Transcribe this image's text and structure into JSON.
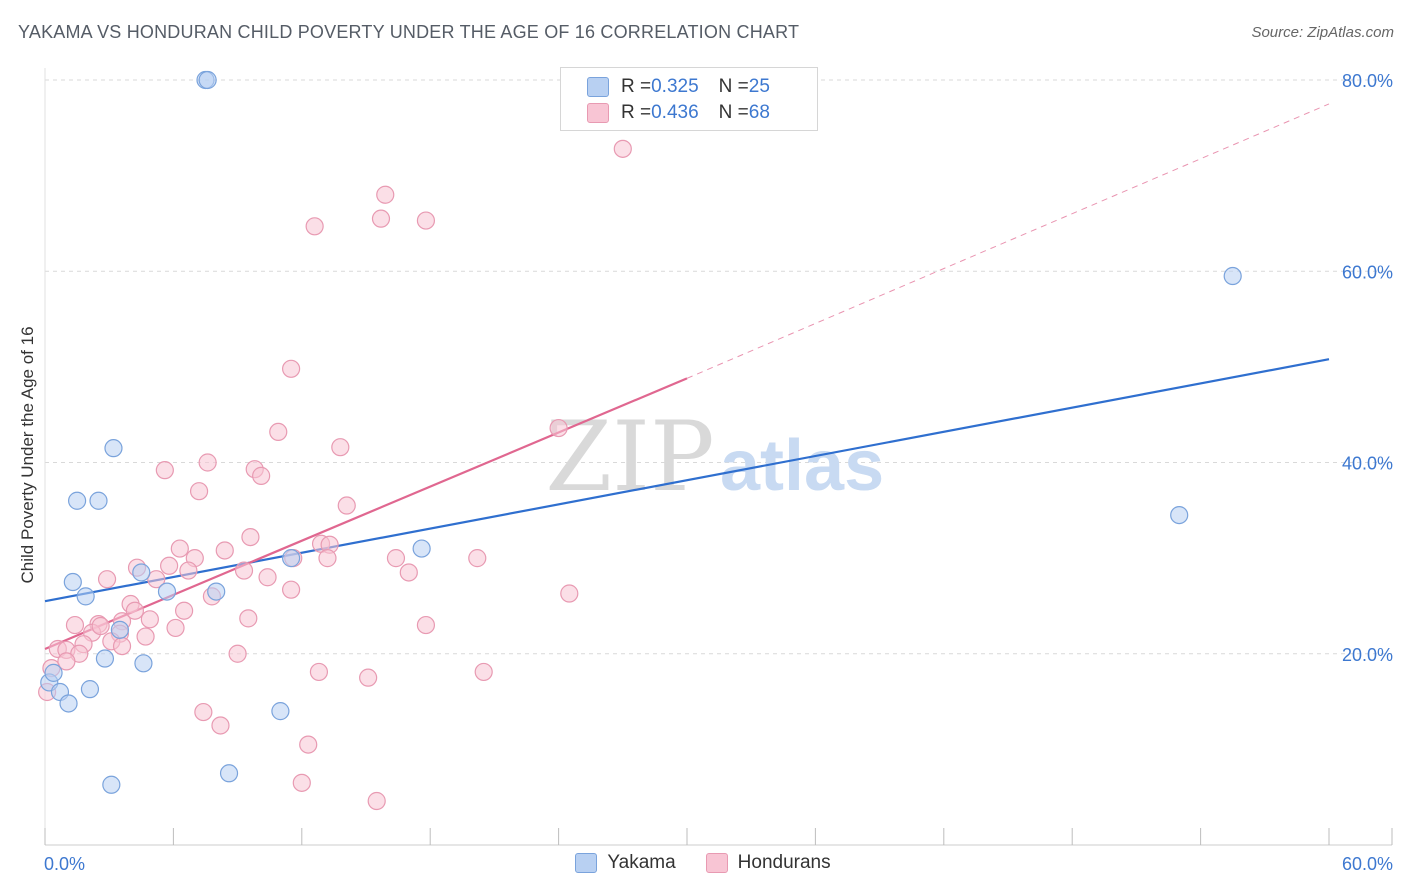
{
  "title": "YAKAMA VS HONDURAN CHILD POVERTY UNDER THE AGE OF 16 CORRELATION CHART",
  "source": "Source: ZipAtlas.com",
  "watermark": {
    "zip": "ZIP",
    "atlas": "atlas"
  },
  "legend": {
    "rows": [
      {
        "r_label": "R = ",
        "r_value": "0.325",
        "n_label": "N = ",
        "n_value": "25"
      },
      {
        "r_label": "R = ",
        "r_value": "0.436",
        "n_label": "N = ",
        "n_value": "68"
      }
    ]
  },
  "bottom_legend": [
    "Yakama",
    "Hondurans"
  ],
  "colors": {
    "yakama_fill": "#b8d0f2",
    "yakama_stroke": "#7aa3dc",
    "yakama_line": "#2f6fcf",
    "honduran_fill": "#f8c5d4",
    "honduran_stroke": "#e89ab2",
    "honduran_line": "#e06790",
    "tick_label": "#3d78d0",
    "grid": "#d9d9d9"
  },
  "chart_data": {
    "type": "scatter",
    "title": "YAKAMA VS HONDURAN CHILD POVERTY UNDER THE AGE OF 16 CORRELATION CHART",
    "xlabel": "",
    "ylabel": "Child Poverty Under the Age of 16",
    "xlim": [
      0,
      60
    ],
    "ylim": [
      0,
      80
    ],
    "x_tick_labels": [
      "0.0%",
      "60.0%"
    ],
    "y_ticks": [
      20,
      40,
      60,
      80
    ],
    "y_tick_labels": [
      "20.0%",
      "40.0%",
      "60.0%",
      "80.0%"
    ],
    "grid": true,
    "series": [
      {
        "name": "Yakama",
        "R": 0.325,
        "N": 25,
        "trend": {
          "x": [
            0,
            60
          ],
          "y": [
            25.5,
            50.8
          ],
          "dashed_extension": false
        },
        "points": [
          [
            7.5,
            80.0
          ],
          [
            7.6,
            80.0
          ],
          [
            55.5,
            59.5
          ],
          [
            53.0,
            34.5
          ],
          [
            3.2,
            41.5
          ],
          [
            1.5,
            36.0
          ],
          [
            2.5,
            36.0
          ],
          [
            1.3,
            27.5
          ],
          [
            1.9,
            26.0
          ],
          [
            4.5,
            28.5
          ],
          [
            5.7,
            26.5
          ],
          [
            8.0,
            26.5
          ],
          [
            11.5,
            30.0
          ],
          [
            17.6,
            31.0
          ],
          [
            3.5,
            22.5
          ],
          [
            2.8,
            19.5
          ],
          [
            4.6,
            19.0
          ],
          [
            0.2,
            17.0
          ],
          [
            0.4,
            18.0
          ],
          [
            0.7,
            16.0
          ],
          [
            2.1,
            16.3
          ],
          [
            1.1,
            14.8
          ],
          [
            11.0,
            14.0
          ],
          [
            8.6,
            7.5
          ],
          [
            3.1,
            6.3
          ]
        ]
      },
      {
        "name": "Hondurans",
        "R": 0.436,
        "N": 68,
        "trend": {
          "x": [
            0,
            30
          ],
          "y": [
            20.5,
            48.8
          ],
          "dashed_extension": {
            "x": [
              30,
              60
            ],
            "y": [
              48.8,
              77.5
            ]
          }
        },
        "points": [
          [
            27.0,
            72.8
          ],
          [
            15.9,
            68.0
          ],
          [
            15.7,
            65.5
          ],
          [
            17.8,
            65.3
          ],
          [
            12.6,
            64.7
          ],
          [
            11.5,
            49.8
          ],
          [
            10.9,
            43.2
          ],
          [
            24.0,
            43.6
          ],
          [
            13.8,
            41.6
          ],
          [
            7.6,
            40.0
          ],
          [
            5.6,
            39.2
          ],
          [
            9.8,
            39.3
          ],
          [
            10.1,
            38.6
          ],
          [
            7.2,
            37.0
          ],
          [
            14.1,
            35.5
          ],
          [
            6.3,
            31.0
          ],
          [
            7.0,
            30.0
          ],
          [
            8.4,
            30.8
          ],
          [
            9.6,
            32.2
          ],
          [
            12.9,
            31.5
          ],
          [
            13.3,
            31.4
          ],
          [
            11.6,
            30.0
          ],
          [
            13.2,
            30.0
          ],
          [
            16.4,
            30.0
          ],
          [
            20.2,
            30.0
          ],
          [
            4.3,
            29.0
          ],
          [
            5.8,
            29.2
          ],
          [
            6.7,
            28.7
          ],
          [
            9.3,
            28.7
          ],
          [
            17.0,
            28.5
          ],
          [
            10.4,
            28.0
          ],
          [
            2.9,
            27.8
          ],
          [
            5.2,
            27.8
          ],
          [
            11.5,
            26.7
          ],
          [
            24.5,
            26.3
          ],
          [
            7.8,
            26.0
          ],
          [
            4.0,
            25.2
          ],
          [
            6.5,
            24.5
          ],
          [
            9.5,
            23.7
          ],
          [
            3.6,
            23.4
          ],
          [
            2.5,
            23.1
          ],
          [
            4.9,
            23.6
          ],
          [
            1.4,
            23.0
          ],
          [
            6.1,
            22.7
          ],
          [
            2.2,
            22.2
          ],
          [
            3.5,
            22.1
          ],
          [
            4.7,
            21.8
          ],
          [
            3.1,
            21.3
          ],
          [
            1.8,
            21.0
          ],
          [
            3.6,
            20.8
          ],
          [
            0.6,
            20.5
          ],
          [
            1.0,
            20.4
          ],
          [
            1.6,
            20.0
          ],
          [
            9.0,
            20.0
          ],
          [
            0.3,
            18.5
          ],
          [
            12.8,
            18.1
          ],
          [
            20.5,
            18.1
          ],
          [
            15.1,
            17.5
          ],
          [
            0.1,
            16.0
          ],
          [
            17.8,
            23.0
          ],
          [
            7.4,
            13.9
          ],
          [
            8.2,
            12.5
          ],
          [
            12.3,
            10.5
          ],
          [
            12.0,
            6.5
          ],
          [
            15.5,
            4.6
          ],
          [
            1.0,
            19.2
          ],
          [
            2.6,
            22.9
          ],
          [
            4.2,
            24.5
          ]
        ]
      }
    ]
  }
}
